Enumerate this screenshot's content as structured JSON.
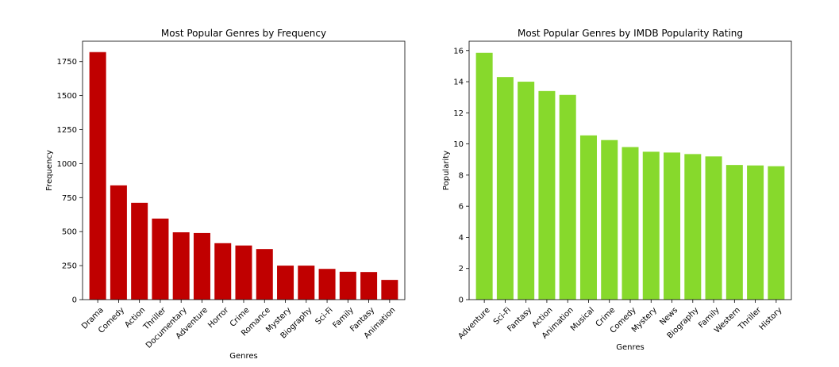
{
  "chart_data": [
    {
      "type": "bar",
      "title": "Most Popular Genres by Frequency",
      "xlabel": "Genres",
      "ylabel": "Frequency",
      "categories": [
        "Drama",
        "Comedy",
        "Action",
        "Thriller",
        "Documentary",
        "Adventure",
        "Horror",
        "Crime",
        "Romance",
        "Mystery",
        "Biography",
        "Sci-Fi",
        "Family",
        "Fantasy",
        "Animation"
      ],
      "values": [
        1820,
        840,
        712,
        596,
        495,
        490,
        415,
        398,
        372,
        250,
        250,
        226,
        205,
        203,
        145
      ],
      "ylim": [
        0,
        1900
      ],
      "yticks": [
        0,
        250,
        500,
        750,
        1000,
        1250,
        1500,
        1750
      ],
      "color": "#c00000",
      "grid": false
    },
    {
      "type": "bar",
      "title": "Most Popular Genres by IMDB Popularity Rating",
      "xlabel": "Genres",
      "ylabel": "Popularity",
      "categories": [
        "Adventure",
        "Sci-Fi",
        "Fantasy",
        "Action",
        "Animation",
        "Musical",
        "Crime",
        "Comedy",
        "Mystery",
        "News",
        "Biography",
        "Family",
        "Western",
        "Thriller",
        "History"
      ],
      "values": [
        15.85,
        14.3,
        14.0,
        13.4,
        13.15,
        10.55,
        10.25,
        9.8,
        9.5,
        9.45,
        9.35,
        9.2,
        8.65,
        8.62,
        8.57
      ],
      "ylim": [
        0,
        16.6
      ],
      "yticks": [
        0,
        2,
        4,
        6,
        8,
        10,
        12,
        14,
        16
      ],
      "color": "#87d92c",
      "grid": false
    }
  ]
}
